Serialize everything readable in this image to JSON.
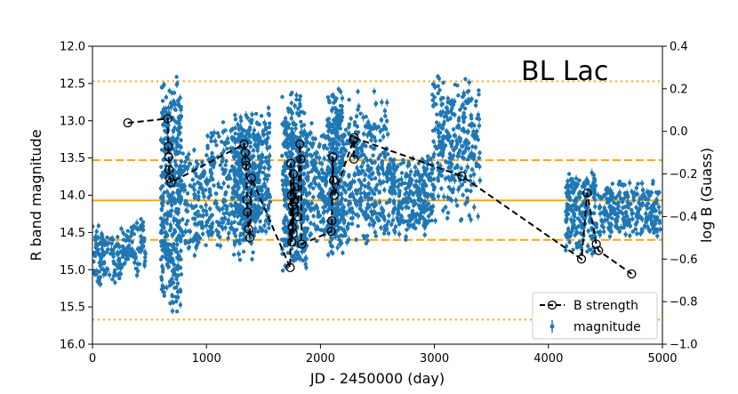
{
  "chart_data": {
    "type": "scatter",
    "title": "BL Lac",
    "xlabel": "JD - 2450000 (day)",
    "ylabel": "R band magnitude",
    "y2label": "log B (Guass)",
    "xlim": [
      0,
      5000
    ],
    "ylim": [
      16.0,
      12.0
    ],
    "y2lim": [
      -1.0,
      0.4
    ],
    "x_ticks": [
      "0",
      "1000",
      "2000",
      "3000",
      "4000",
      "5000"
    ],
    "y_ticks": [
      "12.0",
      "12.5",
      "13.0",
      "13.5",
      "14.0",
      "14.5",
      "15.0",
      "15.5",
      "16.0"
    ],
    "y2_ticks": [
      "0.4",
      "0.2",
      "0.0",
      "−0.2",
      "−0.4",
      "−0.6",
      "−0.8",
      "−1.0"
    ],
    "legend": {
      "placement": "lower-right",
      "entries": [
        "B strength",
        "magnitude"
      ]
    },
    "colors": {
      "magnitude": "#1f77b4",
      "lines": "#ffa500",
      "bstrength": "#000000"
    },
    "hlines_magnitude": [
      {
        "y": 12.47,
        "style": "dotted"
      },
      {
        "y": 13.53,
        "style": "dashed"
      },
      {
        "y": 14.07,
        "style": "solid"
      },
      {
        "y": 14.6,
        "style": "dashed"
      },
      {
        "y": 15.67,
        "style": "dotted"
      }
    ],
    "magnitude_clusters": [
      {
        "x0": 0,
        "x1": 120,
        "ymin": 14.3,
        "ymax": 15.2,
        "center": 14.8,
        "n": 70
      },
      {
        "x0": 120,
        "x1": 250,
        "ymin": 14.5,
        "ymax": 15.2,
        "center": 14.8,
        "n": 50
      },
      {
        "x0": 250,
        "x1": 470,
        "ymin": 14.3,
        "ymax": 15.1,
        "center": 14.7,
        "n": 90
      },
      {
        "x0": 600,
        "x1": 780,
        "ymin": 12.4,
        "ymax": 15.6,
        "center": 14.0,
        "n": 380
      },
      {
        "x0": 780,
        "x1": 1000,
        "ymin": 13.2,
        "ymax": 14.7,
        "center": 14.1,
        "n": 120
      },
      {
        "x0": 1000,
        "x1": 1240,
        "ymin": 12.9,
        "ymax": 14.7,
        "center": 13.9,
        "n": 150
      },
      {
        "x0": 1240,
        "x1": 1420,
        "ymin": 13.0,
        "ymax": 14.9,
        "center": 13.8,
        "n": 300
      },
      {
        "x0": 1420,
        "x1": 1560,
        "ymin": 12.8,
        "ymax": 14.6,
        "center": 13.7,
        "n": 160
      },
      {
        "x0": 1660,
        "x1": 1880,
        "ymin": 12.6,
        "ymax": 15.0,
        "center": 13.9,
        "n": 420
      },
      {
        "x0": 1880,
        "x1": 2060,
        "ymin": 13.0,
        "ymax": 14.6,
        "center": 13.9,
        "n": 140
      },
      {
        "x0": 2060,
        "x1": 2200,
        "ymin": 12.5,
        "ymax": 14.9,
        "center": 13.7,
        "n": 280
      },
      {
        "x0": 2200,
        "x1": 2600,
        "ymin": 12.6,
        "ymax": 14.6,
        "center": 13.7,
        "n": 320
      },
      {
        "x0": 2600,
        "x1": 2980,
        "ymin": 13.5,
        "ymax": 14.6,
        "center": 14.0,
        "n": 260
      },
      {
        "x0": 2980,
        "x1": 3400,
        "ymin": 12.5,
        "ymax": 14.4,
        "center": 13.3,
        "n": 300
      },
      {
        "x0": 4150,
        "x1": 4420,
        "ymin": 13.7,
        "ymax": 14.8,
        "center": 14.2,
        "n": 200
      },
      {
        "x0": 4420,
        "x1": 4980,
        "ymin": 13.8,
        "ymax": 14.6,
        "center": 14.2,
        "n": 260
      }
    ],
    "bstrength": {
      "x": [
        310,
        660,
        665,
        668,
        672,
        678,
        690,
        1330,
        1340,
        1345,
        1350,
        1355,
        1360,
        1370,
        1380,
        1395,
        1735,
        1740,
        1745,
        1750,
        1752,
        1755,
        1760,
        1763,
        1768,
        1775,
        1800,
        1820,
        1828,
        1835,
        2095,
        2100,
        2108,
        2115,
        2120,
        2290,
        2293,
        2296,
        3240,
        4290,
        4340,
        4420,
        4440,
        4730
      ],
      "y": [
        0.04,
        0.06,
        -0.07,
        -0.12,
        -0.18,
        -0.22,
        -0.24,
        -0.06,
        -0.1,
        -0.14,
        -0.16,
        -0.32,
        -0.38,
        -0.46,
        -0.5,
        -0.22,
        -0.64,
        -0.15,
        -0.3,
        -0.52,
        -0.45,
        -0.35,
        -0.48,
        -0.2,
        -0.33,
        -0.26,
        -0.4,
        -0.06,
        -0.13,
        -0.53,
        -0.47,
        -0.42,
        -0.12,
        -0.23,
        -0.3,
        -0.04,
        -0.13,
        -0.03,
        -0.21,
        -0.6,
        -0.29,
        -0.53,
        -0.56,
        -0.67
      ]
    }
  }
}
